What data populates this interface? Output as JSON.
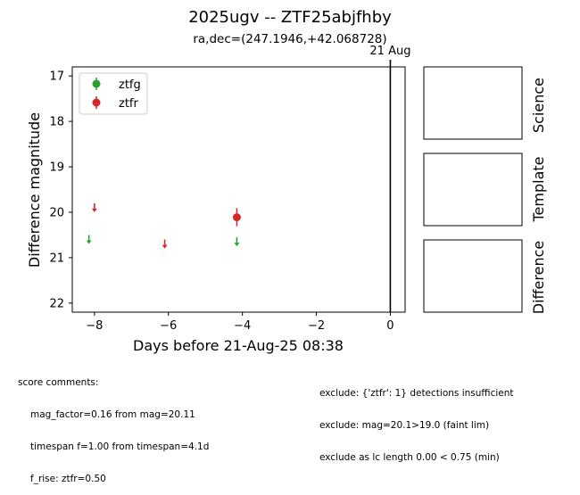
{
  "title": "2025ugv -- ZTF25abjfhby",
  "subtitle": "ra,dec=(247.1946,+42.068728)",
  "chart_data": {
    "type": "scatter",
    "xlabel": "Days before 21-Aug-25 08:38",
    "ylabel": "Difference magnitude",
    "xlim": [
      -8.6,
      0.4
    ],
    "ylim": [
      22.2,
      16.8
    ],
    "y_inverted": true,
    "x_ticks": [
      "-8",
      "-6",
      "-4",
      "-2",
      "0"
    ],
    "y_ticks": [
      "17",
      "18",
      "19",
      "20",
      "21",
      "22"
    ],
    "legend_position": "upper-left",
    "marker_line": {
      "x": 0,
      "label": "21 Aug"
    },
    "series": [
      {
        "name": "ztfg",
        "color": "#2ca02c",
        "detections": [],
        "upper_limits": [
          {
            "x": -8.15,
            "y": 20.6
          },
          {
            "x": -4.15,
            "y": 20.65
          }
        ]
      },
      {
        "name": "ztfr",
        "color": "#d62728",
        "detections": [
          {
            "x": -4.15,
            "y": 20.11,
            "err": 0.2
          }
        ],
        "upper_limits": [
          {
            "x": -8.0,
            "y": 19.9
          },
          {
            "x": -6.1,
            "y": 20.7
          }
        ]
      }
    ]
  },
  "stamps": {
    "science_label": "Science",
    "template_label": "Template",
    "difference_label": "Difference"
  },
  "comments": {
    "left_title": "score comments:",
    "left_lines": [
      "mag_factor=0.16 from mag=20.11",
      "timespan f=1.00 from timespan=4.1d",
      "f_rise: ztfr=0.50"
    ],
    "right_lines": [
      "exclude: {'ztfr': 1} detections insufficient",
      "exclude: mag=20.1>19.0 (faint lim)",
      "exclude as lc length 0.00 < 0.75 (min)"
    ]
  }
}
